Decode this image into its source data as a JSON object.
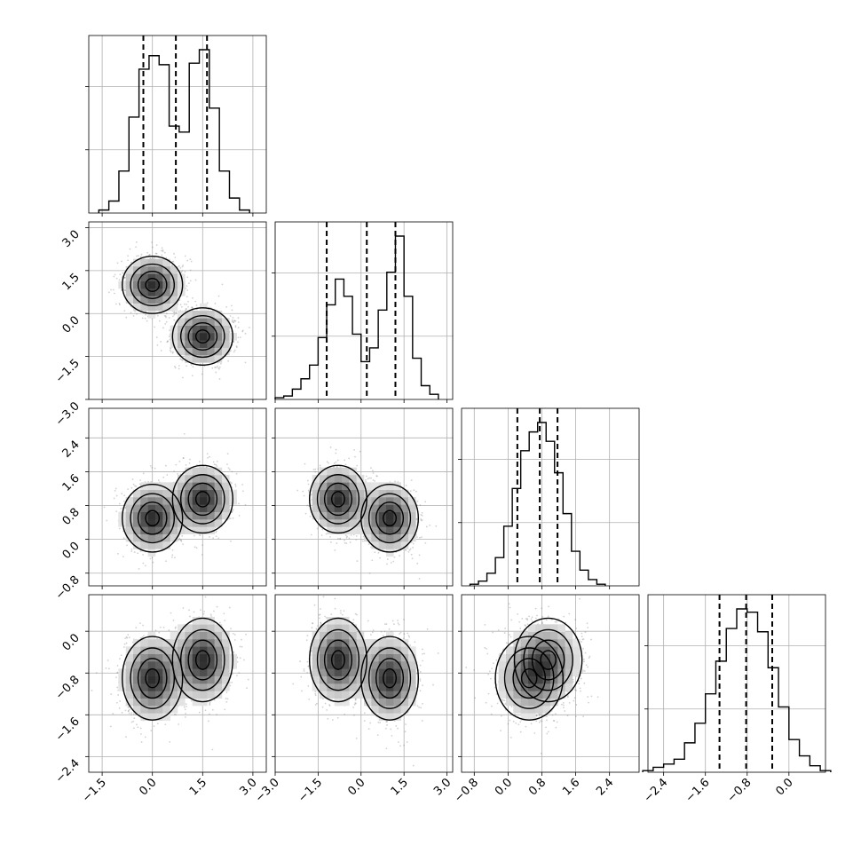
{
  "chart_data": {
    "type": "corner",
    "n_params": 4,
    "axis_ranges": [
      [
        -1.9,
        3.4
      ],
      [
        -3.0,
        3.2
      ],
      [
        -1.1,
        3.1
      ],
      [
        -2.7,
        0.7
      ]
    ],
    "ticks": [
      {
        "values": [
          -1.5,
          0.0,
          1.5,
          3.0
        ],
        "labels": [
          "−1.5",
          "0.0",
          "1.5",
          "3.0"
        ]
      },
      {
        "values": [
          -3.0,
          -1.5,
          0.0,
          1.5,
          3.0
        ],
        "labels": [
          "−3.0",
          "−1.5",
          "0.0",
          "1.5",
          "3.0"
        ]
      },
      {
        "values": [
          -0.8,
          0.0,
          0.8,
          1.6,
          2.4
        ],
        "labels": [
          "−0.8",
          "0.0",
          "0.8",
          "1.6",
          "2.4"
        ]
      },
      {
        "values": [
          -2.4,
          -1.6,
          -0.8,
          0.0
        ],
        "labels": [
          "−2.4",
          "−1.6",
          "−0.8",
          "0.0"
        ]
      }
    ],
    "quantiles": [
      [
        -0.27,
        0.7,
        1.63
      ],
      [
        -1.2,
        0.2,
        1.2
      ],
      [
        0.22,
        0.75,
        1.17
      ],
      [
        -1.33,
        -0.82,
        -0.32
      ]
    ],
    "histograms": [
      {
        "bin_edges": [
          -1.6,
          -1.3,
          -1.0,
          -0.7,
          -0.4,
          -0.1,
          0.2,
          0.5,
          0.8,
          1.1,
          1.4,
          1.7,
          2.0,
          2.3,
          2.6,
          2.9
        ],
        "counts": [
          2,
          8,
          28,
          64,
          96,
          105,
          99,
          58,
          54,
          100,
          109,
          70,
          28,
          10,
          2
        ]
      },
      {
        "bin_edges": [
          -3.0,
          -2.7,
          -2.4,
          -2.1,
          -1.8,
          -1.5,
          -1.2,
          -0.9,
          -0.6,
          -0.3,
          0.0,
          0.3,
          0.6,
          0.9,
          1.2,
          1.5,
          1.8,
          2.1,
          2.4,
          2.7
        ],
        "counts": [
          1,
          2,
          6,
          12,
          20,
          36,
          55,
          70,
          60,
          38,
          22,
          30,
          52,
          74,
          95,
          60,
          24,
          8,
          3
        ]
      },
      {
        "bin_edges": [
          -0.9,
          -0.7,
          -0.5,
          -0.3,
          -0.1,
          0.1,
          0.3,
          0.5,
          0.7,
          0.9,
          1.1,
          1.3,
          1.5,
          1.7,
          1.9,
          2.1,
          2.3
        ],
        "counts": [
          1,
          3,
          8,
          18,
          38,
          62,
          86,
          98,
          104,
          92,
          72,
          46,
          22,
          10,
          4,
          1
        ]
      },
      {
        "bin_edges": [
          -2.8,
          -2.6,
          -2.4,
          -2.2,
          -2.0,
          -1.8,
          -1.6,
          -1.4,
          -1.2,
          -1.0,
          -0.8,
          -0.6,
          -0.4,
          -0.2,
          0.0,
          0.2,
          0.4,
          0.6,
          0.8
        ],
        "counts": [
          1,
          3,
          5,
          8,
          18,
          30,
          48,
          68,
          88,
          100,
          98,
          86,
          64,
          40,
          20,
          10,
          4,
          1
        ]
      }
    ],
    "components": [
      {
        "weight": 0.5,
        "mean": [
          0.0,
          1.0,
          0.5,
          -0.9
        ],
        "sd": [
          0.45,
          0.5,
          0.4,
          0.4
        ]
      },
      {
        "weight": 0.5,
        "mean": [
          1.5,
          -0.8,
          0.95,
          -0.55
        ],
        "sd": [
          0.45,
          0.5,
          0.4,
          0.4
        ]
      }
    ],
    "grid": true
  }
}
